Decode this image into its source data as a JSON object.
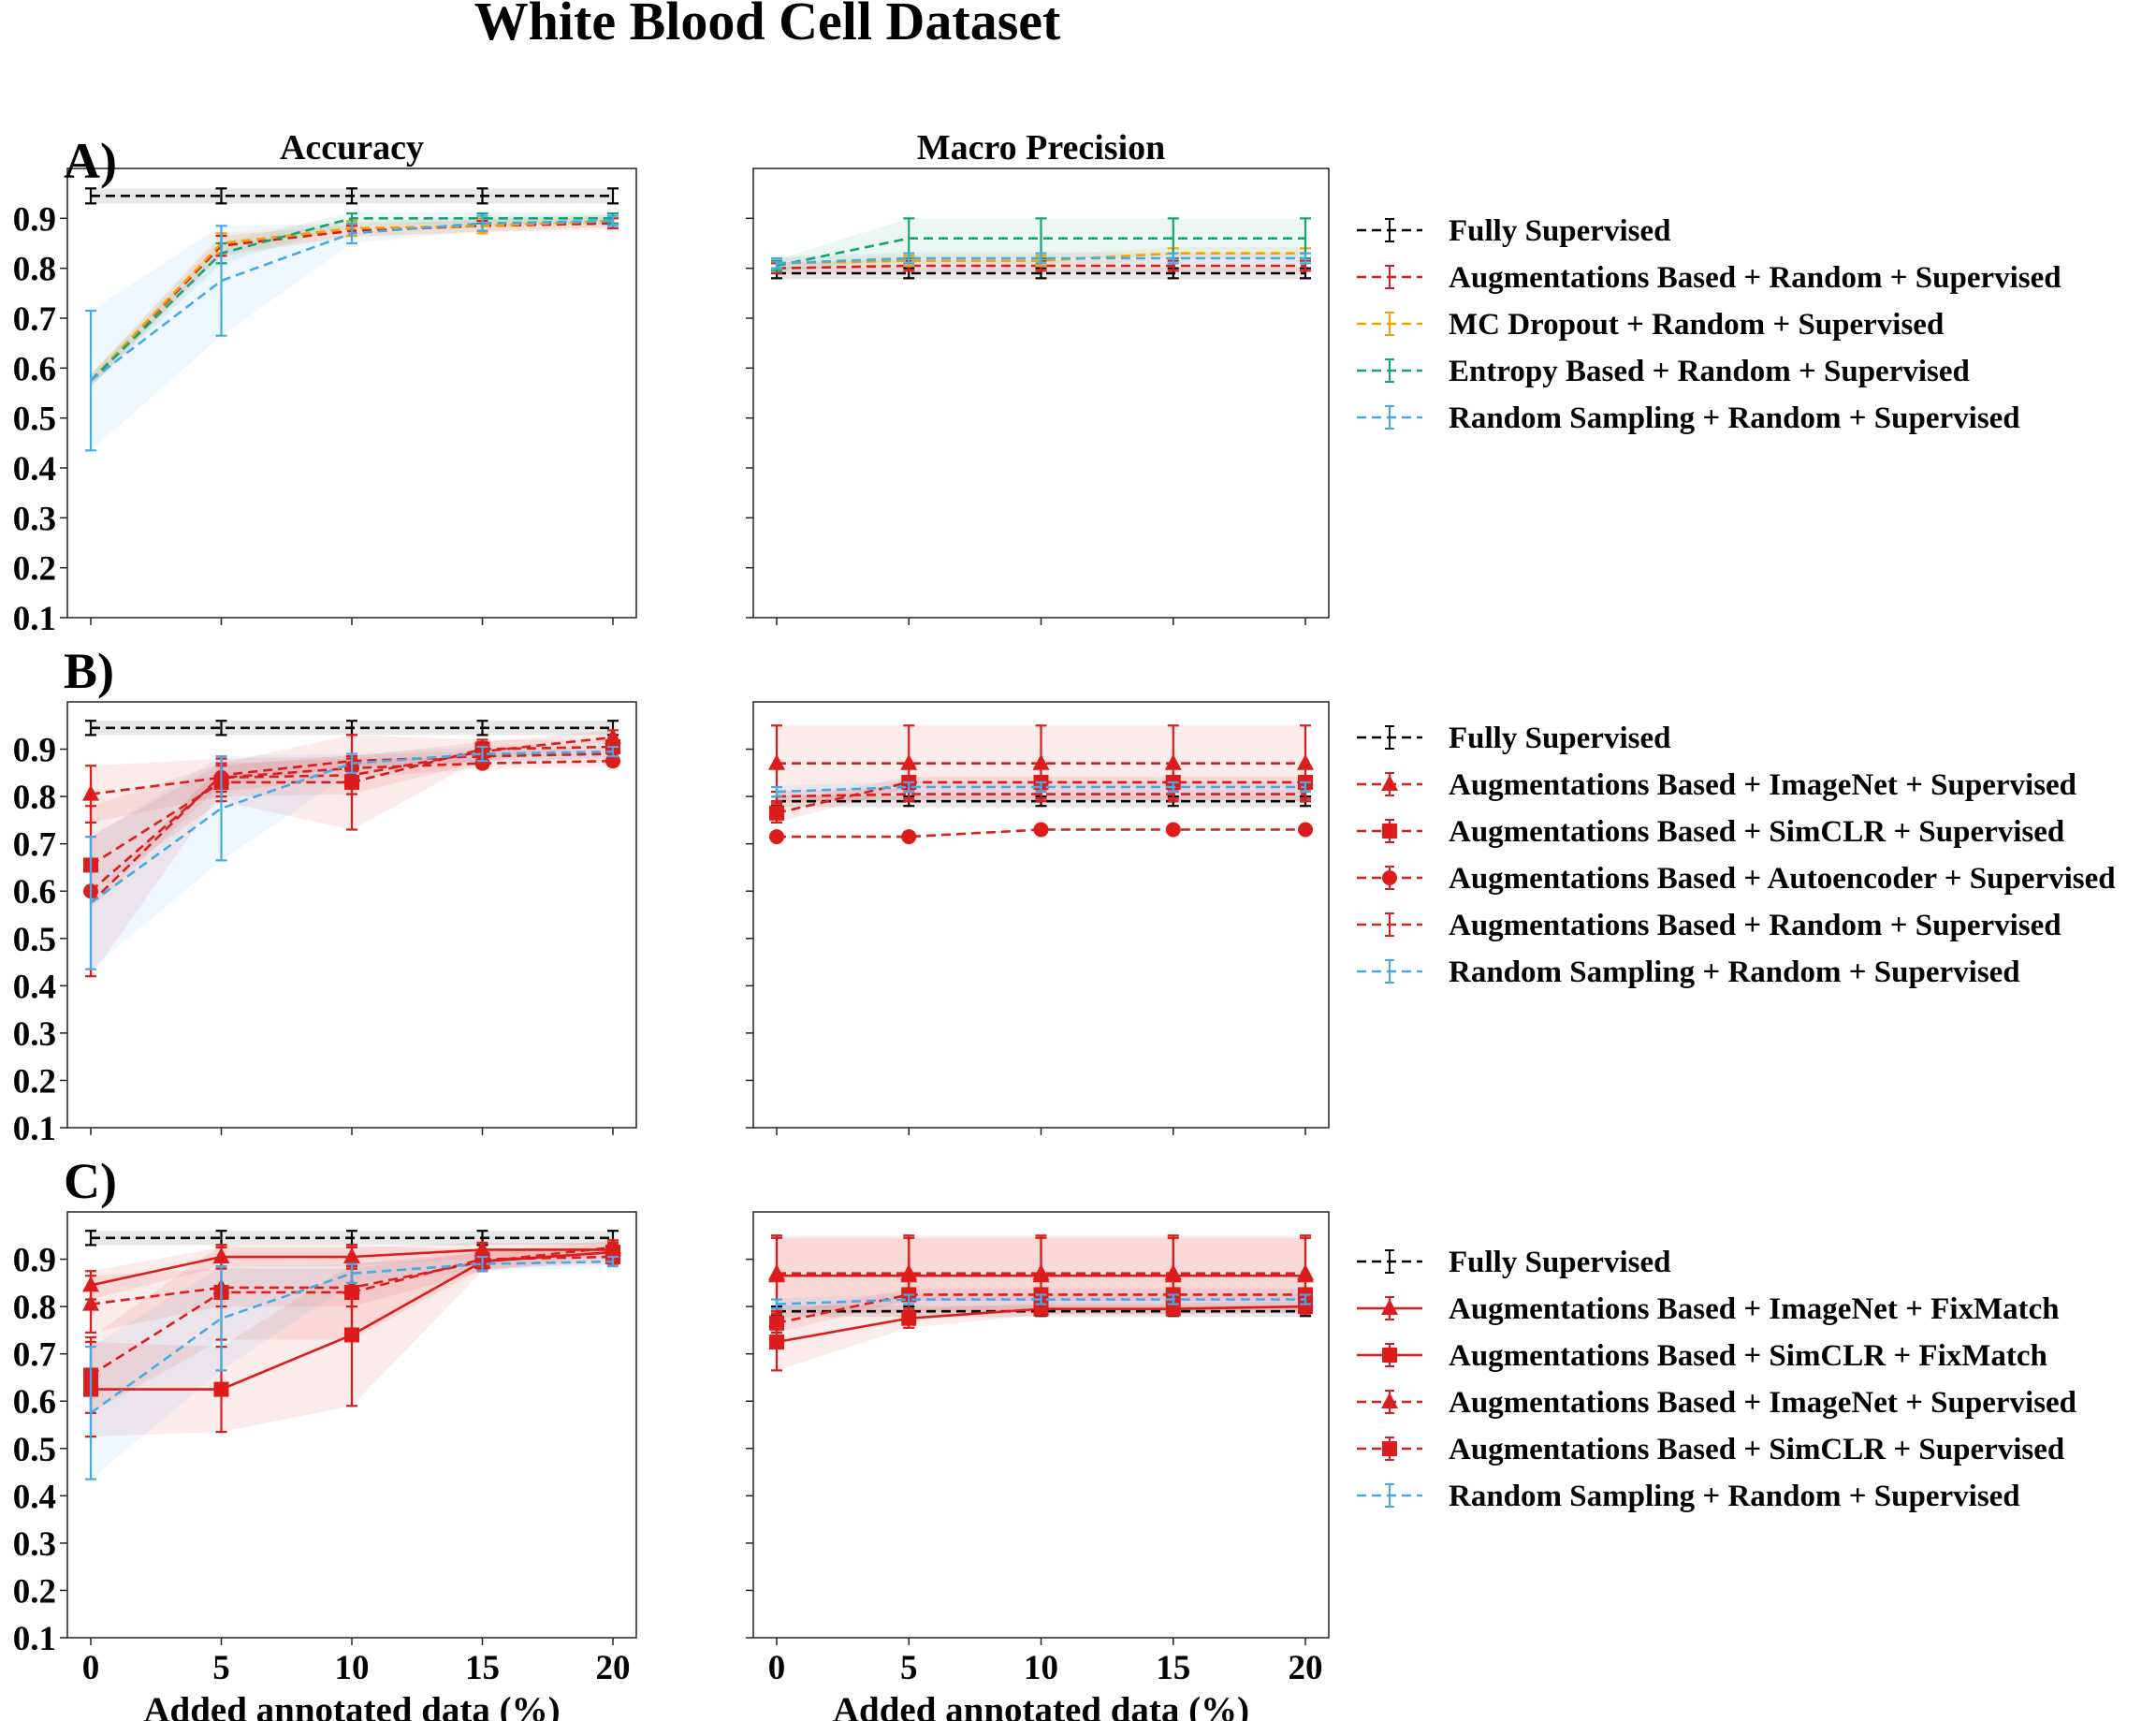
{
  "title": "White Blood Cell Dataset",
  "col_titles": [
    "Accuracy",
    "Macro Precision"
  ],
  "xlabel": "Added annotated data (%)",
  "x_ticks": [
    0,
    5,
    10,
    15,
    20
  ],
  "y_ticks": [
    "0.1",
    "0.2",
    "0.3",
    "0.4",
    "0.5",
    "0.6",
    "0.7",
    "0.8",
    "0.9"
  ],
  "colors": {
    "black": "#000000",
    "red": "#dd1c1c",
    "orange": "#f2a200",
    "green": "#15a37a",
    "blue": "#45aae8"
  },
  "chart_data": [
    {
      "type": "line",
      "panel": "A)",
      "title": "Accuracy",
      "xlabel": "",
      "ylabel": "",
      "x": [
        0,
        5,
        10,
        15,
        20
      ],
      "ylim": [
        0.1,
        1.0
      ],
      "series": [
        {
          "name": "Fully Supervised",
          "color": "black",
          "dash": true,
          "marker": "none",
          "values": [
            0.945,
            0.945,
            0.945,
            0.945,
            0.945
          ],
          "err": [
            0.015,
            0.015,
            0.015,
            0.015,
            0.015
          ],
          "band": true
        },
        {
          "name": "Augmentations Based +  Random + Supervised",
          "color": "red",
          "dash": true,
          "marker": "none",
          "values": [
            0.575,
            0.845,
            0.875,
            0.885,
            0.89
          ],
          "err": [
            0,
            0.02,
            0.01,
            0.01,
            0.01
          ],
          "band": true
        },
        {
          "name": "MC Dropout +  Random + Supervised",
          "color": "orange",
          "dash": true,
          "marker": "none",
          "values": [
            0.575,
            0.85,
            0.88,
            0.885,
            0.895
          ],
          "err": [
            0,
            0.02,
            0.015,
            0.015,
            0.01
          ],
          "band": true
        },
        {
          "name": "Entropy Based +  Random + Supervised",
          "color": "green",
          "dash": true,
          "marker": "none",
          "values": [
            0.575,
            0.83,
            0.9,
            0.9,
            0.9
          ],
          "err": [
            0,
            0.02,
            0.01,
            0.01,
            0.01
          ],
          "band": true
        },
        {
          "name": "Random Sampling +  Random + Supervised",
          "color": "blue",
          "dash": true,
          "marker": "none",
          "values": [
            0.575,
            0.775,
            0.87,
            0.89,
            0.895
          ],
          "err": [
            0.14,
            0.11,
            0.02,
            0.015,
            0.01
          ],
          "band": true
        }
      ]
    },
    {
      "type": "line",
      "panel": "A)",
      "title": "Macro Precision",
      "xlabel": "",
      "ylabel": "",
      "x": [
        0,
        5,
        10,
        15,
        20
      ],
      "ylim": [
        0.1,
        1.0
      ],
      "series": [
        {
          "name": "Fully Supervised",
          "color": "black",
          "dash": true,
          "marker": "none",
          "values": [
            0.79,
            0.79,
            0.79,
            0.79,
            0.79
          ],
          "err": [
            0.01,
            0.01,
            0.01,
            0.01,
            0.01
          ],
          "band": true
        },
        {
          "name": "Augmentations Based +  Random + Supervised",
          "color": "red",
          "dash": true,
          "marker": "none",
          "values": [
            0.8,
            0.805,
            0.805,
            0.805,
            0.805
          ],
          "err": [
            0.01,
            0.01,
            0.01,
            0.01,
            0.01
          ],
          "band": true
        },
        {
          "name": "MC Dropout +  Random + Supervised",
          "color": "orange",
          "dash": true,
          "marker": "none",
          "values": [
            0.81,
            0.815,
            0.815,
            0.83,
            0.83
          ],
          "err": [
            0.01,
            0.01,
            0.01,
            0.01,
            0.01
          ],
          "band": true
        },
        {
          "name": "Entropy Based +  Random + Supervised",
          "color": "green",
          "dash": true,
          "marker": "none",
          "values": [
            0.805,
            0.86,
            0.86,
            0.86,
            0.86
          ],
          "err": [
            0.01,
            0.04,
            0.04,
            0.04,
            0.04
          ],
          "band": true
        },
        {
          "name": "Random Sampling +  Random + Supervised",
          "color": "blue",
          "dash": true,
          "marker": "none",
          "values": [
            0.81,
            0.82,
            0.82,
            0.82,
            0.82
          ],
          "err": [
            0.01,
            0.01,
            0.01,
            0.01,
            0.01
          ],
          "band": true
        }
      ]
    },
    {
      "type": "line",
      "panel": "B)",
      "title": "Accuracy",
      "xlabel": "",
      "ylabel": "",
      "x": [
        0,
        5,
        10,
        15,
        20
      ],
      "ylim": [
        0.1,
        1.0
      ],
      "series": [
        {
          "name": "Fully Supervised",
          "color": "black",
          "dash": true,
          "marker": "none",
          "values": [
            0.945,
            0.945,
            0.945,
            0.945,
            0.945
          ],
          "err": [
            0.015,
            0.015,
            0.015,
            0.015,
            0.015
          ],
          "band": true
        },
        {
          "name": "Augmentations Based + ImageNet + Supervised",
          "color": "red",
          "dash": true,
          "marker": "triangle",
          "values": [
            0.805,
            0.84,
            0.845,
            0.895,
            0.925
          ],
          "err": [
            0.06,
            0.04,
            0.04,
            0.02,
            0.015
          ],
          "band": true
        },
        {
          "name": "Augmentations Based + SimCLR + Supervised",
          "color": "red",
          "dash": true,
          "marker": "square",
          "values": [
            0.655,
            0.83,
            0.83,
            0.9,
            0.905
          ],
          "err": [
            0.06,
            0.04,
            0.1,
            0.02,
            0.015
          ],
          "band": true
        },
        {
          "name": "Augmentations Based + Autoencoder + Supervised",
          "color": "red",
          "dash": true,
          "marker": "circle",
          "values": [
            0.6,
            0.84,
            0.86,
            0.87,
            0.875
          ],
          "err": [
            0.18,
            0.03,
            0.02,
            0.01,
            0.01
          ],
          "band": true
        },
        {
          "name": "Augmentations Based +  Random + Supervised",
          "color": "red",
          "dash": true,
          "marker": "none",
          "values": [
            0.575,
            0.845,
            0.875,
            0.885,
            0.89
          ],
          "err": [
            0,
            0.02,
            0.01,
            0.01,
            0.01
          ],
          "band": true
        },
        {
          "name": "Random Sampling +  Random + Supervised",
          "color": "blue",
          "dash": true,
          "marker": "none",
          "values": [
            0.575,
            0.775,
            0.87,
            0.89,
            0.895
          ],
          "err": [
            0.14,
            0.11,
            0.02,
            0.015,
            0.01
          ],
          "band": true
        }
      ]
    },
    {
      "type": "line",
      "panel": "B)",
      "title": "Macro Precision",
      "xlabel": "",
      "ylabel": "",
      "x": [
        0,
        5,
        10,
        15,
        20
      ],
      "ylim": [
        0.1,
        1.0
      ],
      "series": [
        {
          "name": "Fully Supervised",
          "color": "black",
          "dash": true,
          "marker": "none",
          "values": [
            0.79,
            0.79,
            0.79,
            0.79,
            0.79
          ],
          "err": [
            0.01,
            0.01,
            0.01,
            0.01,
            0.01
          ],
          "band": true
        },
        {
          "name": "Augmentations Based + ImageNet + Supervised",
          "color": "red",
          "dash": true,
          "marker": "triangle",
          "values": [
            0.87,
            0.87,
            0.87,
            0.87,
            0.87
          ],
          "err": [
            0.08,
            0.08,
            0.08,
            0.08,
            0.08
          ],
          "band": true
        },
        {
          "name": "Augmentations Based + SimCLR + Supervised",
          "color": "red",
          "dash": true,
          "marker": "square",
          "values": [
            0.765,
            0.83,
            0.83,
            0.83,
            0.83
          ],
          "err": [
            0.02,
            0.01,
            0.01,
            0.01,
            0.01
          ],
          "band": true
        },
        {
          "name": "Augmentations Based + Autoencoder + Supervised",
          "color": "red",
          "dash": true,
          "marker": "circle",
          "values": [
            0.715,
            0.715,
            0.73,
            0.73,
            0.73
          ],
          "err": [
            0,
            0,
            0,
            0,
            0
          ],
          "band": false
        },
        {
          "name": "Augmentations Based +  Random + Supervised",
          "color": "red",
          "dash": true,
          "marker": "none",
          "values": [
            0.8,
            0.805,
            0.805,
            0.805,
            0.805
          ],
          "err": [
            0.01,
            0.01,
            0.01,
            0.01,
            0.01
          ],
          "band": true
        },
        {
          "name": "Random Sampling +  Random + Supervised",
          "color": "blue",
          "dash": true,
          "marker": "none",
          "values": [
            0.81,
            0.82,
            0.82,
            0.82,
            0.82
          ],
          "err": [
            0.01,
            0.01,
            0.01,
            0.01,
            0.01
          ],
          "band": true
        }
      ]
    },
    {
      "type": "line",
      "panel": "C)",
      "title": "Accuracy",
      "xlabel": "Added annotated data (%)",
      "ylabel": "",
      "x": [
        0,
        5,
        10,
        15,
        20
      ],
      "ylim": [
        0.1,
        1.0
      ],
      "series": [
        {
          "name": "Fully Supervised",
          "color": "black",
          "dash": true,
          "marker": "none",
          "values": [
            0.945,
            0.945,
            0.945,
            0.945,
            0.945
          ],
          "err": [
            0.015,
            0.015,
            0.015,
            0.015,
            0.015
          ],
          "band": true
        },
        {
          "name": "Augmentations Based + ImageNet + FixMatch",
          "color": "red",
          "dash": false,
          "marker": "triangle",
          "values": [
            0.845,
            0.905,
            0.905,
            0.92,
            0.92
          ],
          "err": [
            0.03,
            0.02,
            0.02,
            0.015,
            0.015
          ],
          "band": true
        },
        {
          "name": "Augmentations Based + SimCLR + FixMatch",
          "color": "red",
          "dash": false,
          "marker": "square",
          "values": [
            0.625,
            0.625,
            0.74,
            0.895,
            0.915
          ],
          "err": [
            0.1,
            0.09,
            0.15,
            0.02,
            0.015
          ],
          "band": true
        },
        {
          "name": "Augmentations Based + ImageNet + Supervised",
          "color": "red",
          "dash": true,
          "marker": "triangle",
          "values": [
            0.805,
            0.84,
            0.84,
            0.895,
            0.925
          ],
          "err": [
            0.06,
            0.04,
            0.04,
            0.02,
            0.015
          ],
          "band": true
        },
        {
          "name": "Augmentations Based + SimCLR + Supervised",
          "color": "red",
          "dash": true,
          "marker": "square",
          "values": [
            0.655,
            0.83,
            0.83,
            0.9,
            0.905
          ],
          "err": [
            0.08,
            0.1,
            0.1,
            0.02,
            0.015
          ],
          "band": true
        },
        {
          "name": "Random Sampling +  Random + Supervised",
          "color": "blue",
          "dash": true,
          "marker": "none",
          "values": [
            0.575,
            0.775,
            0.87,
            0.89,
            0.895
          ],
          "err": [
            0.14,
            0.11,
            0.02,
            0.015,
            0.01
          ],
          "band": true
        }
      ]
    },
    {
      "type": "line",
      "panel": "C)",
      "title": "Macro Precision",
      "xlabel": "Added annotated data (%)",
      "ylabel": "",
      "x": [
        0,
        5,
        10,
        15,
        20
      ],
      "ylim": [
        0.1,
        1.0
      ],
      "series": [
        {
          "name": "Fully Supervised",
          "color": "black",
          "dash": true,
          "marker": "none",
          "values": [
            0.79,
            0.79,
            0.79,
            0.79,
            0.79
          ],
          "err": [
            0.01,
            0.01,
            0.01,
            0.01,
            0.01
          ],
          "band": true
        },
        {
          "name": "Augmentations Based + ImageNet + FixMatch",
          "color": "red",
          "dash": false,
          "marker": "triangle",
          "values": [
            0.865,
            0.865,
            0.865,
            0.865,
            0.865
          ],
          "err": [
            0.08,
            0.08,
            0.08,
            0.08,
            0.08
          ],
          "band": true
        },
        {
          "name": "Augmentations Based + SimCLR + FixMatch",
          "color": "red",
          "dash": false,
          "marker": "square",
          "values": [
            0.725,
            0.775,
            0.795,
            0.795,
            0.8
          ],
          "err": [
            0.06,
            0.02,
            0.01,
            0.01,
            0.01
          ],
          "band": true
        },
        {
          "name": "Augmentations Based + ImageNet + Supervised",
          "color": "red",
          "dash": true,
          "marker": "triangle",
          "values": [
            0.87,
            0.87,
            0.87,
            0.87,
            0.87
          ],
          "err": [
            0.08,
            0.08,
            0.08,
            0.08,
            0.08
          ],
          "band": true
        },
        {
          "name": "Augmentations Based + SimCLR + Supervised",
          "color": "red",
          "dash": true,
          "marker": "square",
          "values": [
            0.765,
            0.825,
            0.825,
            0.825,
            0.825
          ],
          "err": [
            0.02,
            0.01,
            0.01,
            0.01,
            0.01
          ],
          "band": true
        },
        {
          "name": "Random Sampling +  Random + Supervised",
          "color": "blue",
          "dash": true,
          "marker": "none",
          "values": [
            0.805,
            0.815,
            0.815,
            0.815,
            0.815
          ],
          "err": [
            0.01,
            0.01,
            0.01,
            0.01,
            0.01
          ],
          "band": true
        }
      ]
    }
  ]
}
